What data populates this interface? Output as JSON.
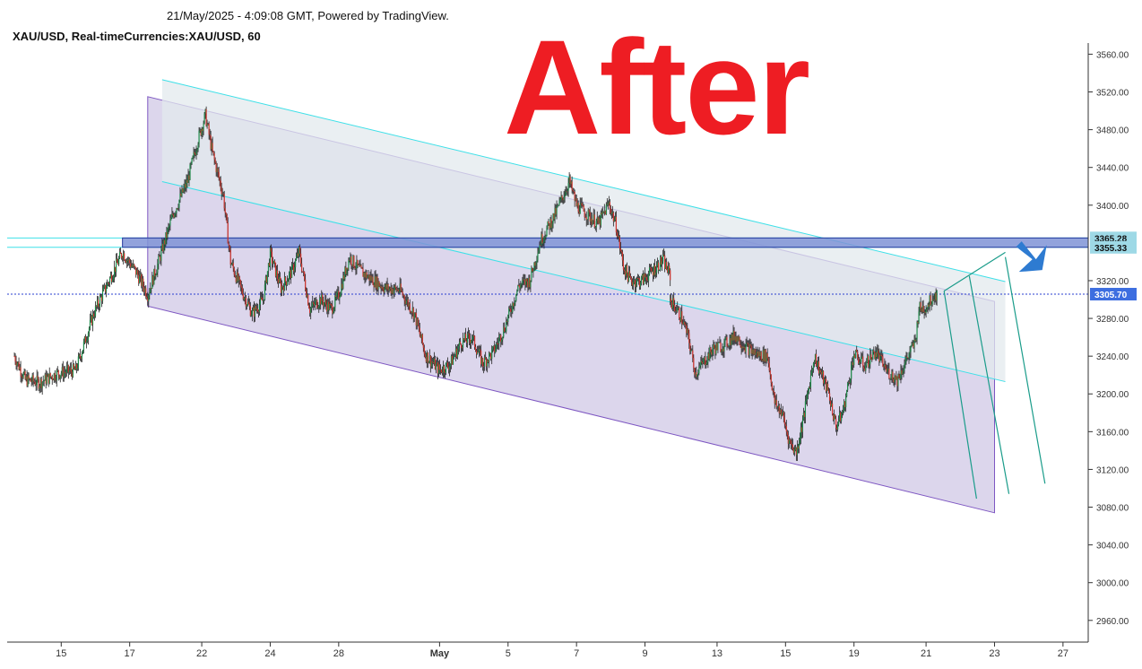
{
  "header": {
    "timestamp_line": "21/May/2025 - 4:09:08 GMT, Powered by TradingView.",
    "symbol_line": "XAU/USD, Real-timeCurrencies:XAU/USD, 60"
  },
  "overlay_text": "After",
  "colors": {
    "up_candle": "#1e8c4a",
    "down_candle": "#d0342c",
    "wick": "#222222",
    "channel_fill": "#d8d2ea",
    "channel_line": "#7e57c2",
    "upper_channel_fill": "#e3e9ee",
    "cyan_line": "#3ee0e8",
    "zone_fill": "#7f93d6",
    "zone_border": "#26399e",
    "projection_line": "#1a9c8a",
    "arrow": "#2e7bd1",
    "price_label_bg": "#3d6ee0",
    "zone_label_bg": "#9ed9e6",
    "overlay_text": "#ee1d23"
  },
  "chart_data": {
    "type": "candlestick",
    "title": "XAU/USD, Real-timeCurrencies:XAU/USD, 60",
    "x_labels": [
      {
        "label": "15",
        "bar": 13
      },
      {
        "label": "17",
        "bar": 32
      },
      {
        "label": "22",
        "bar": 52
      },
      {
        "label": "24",
        "bar": 71
      },
      {
        "label": "28",
        "bar": 90
      },
      {
        "label": "May",
        "bar": 118
      },
      {
        "label": "5",
        "bar": 137
      },
      {
        "label": "7",
        "bar": 156
      },
      {
        "label": "9",
        "bar": 175
      },
      {
        "label": "13",
        "bar": 195
      },
      {
        "label": "15",
        "bar": 214
      },
      {
        "label": "19",
        "bar": 233
      },
      {
        "label": "21",
        "bar": 253
      },
      {
        "label": "23",
        "bar": 272
      },
      {
        "label": "27",
        "bar": 291
      }
    ],
    "bar_range": [
      -2,
      298
    ],
    "y_ticks": [
      2960,
      3000,
      3040,
      3080,
      3120,
      3160,
      3200,
      3240,
      3280,
      3320,
      3400,
      3440,
      3480,
      3520,
      3560
    ],
    "ylim": [
      2937,
      3568
    ],
    "price_labels": [
      {
        "value": 3365.28,
        "label": "3365.28",
        "style": "zone"
      },
      {
        "value": 3355.33,
        "label": "3355.33",
        "style": "zone"
      },
      {
        "value": 3305.7,
        "label": "3305.70",
        "style": "current"
      }
    ],
    "anchors": [
      [
        0,
        3240
      ],
      [
        3,
        3215
      ],
      [
        7,
        3212
      ],
      [
        12,
        3222
      ],
      [
        17,
        3225
      ],
      [
        22,
        3285
      ],
      [
        26,
        3318
      ],
      [
        30,
        3350
      ],
      [
        34,
        3328
      ],
      [
        37,
        3305
      ],
      [
        40,
        3340
      ],
      [
        44,
        3390
      ],
      [
        48,
        3425
      ],
      [
        51,
        3470
      ],
      [
        53,
        3495
      ],
      [
        55,
        3455
      ],
      [
        58,
        3410
      ],
      [
        60,
        3340
      ],
      [
        63,
        3310
      ],
      [
        66,
        3285
      ],
      [
        69,
        3300
      ],
      [
        71,
        3348
      ],
      [
        74,
        3312
      ],
      [
        77,
        3330
      ],
      [
        79,
        3350
      ],
      [
        82,
        3290
      ],
      [
        85,
        3300
      ],
      [
        88,
        3290
      ],
      [
        90,
        3305
      ],
      [
        93,
        3345
      ],
      [
        96,
        3330
      ],
      [
        99,
        3322
      ],
      [
        103,
        3312
      ],
      [
        107,
        3310
      ],
      [
        111,
        3285
      ],
      [
        114,
        3242
      ],
      [
        118,
        3225
      ],
      [
        121,
        3232
      ],
      [
        124,
        3255
      ],
      [
        127,
        3260
      ],
      [
        130,
        3232
      ],
      [
        133,
        3245
      ],
      [
        136,
        3270
      ],
      [
        140,
        3315
      ],
      [
        143,
        3320
      ],
      [
        146,
        3362
      ],
      [
        150,
        3390
      ],
      [
        154,
        3425
      ],
      [
        156,
        3400
      ],
      [
        159,
        3390
      ],
      [
        162,
        3380
      ],
      [
        165,
        3402
      ],
      [
        167,
        3378
      ],
      [
        169,
        3335
      ],
      [
        171,
        3320
      ],
      [
        174,
        3320
      ],
      [
        177,
        3330
      ],
      [
        180,
        3342
      ],
      [
        182,
        3325
      ]
    ],
    "anchors_2": [
      [
        182,
        3300
      ],
      [
        185,
        3282
      ],
      [
        187,
        3260
      ],
      [
        189,
        3222
      ],
      [
        191,
        3232
      ],
      [
        194,
        3248
      ],
      [
        197,
        3252
      ],
      [
        200,
        3262
      ],
      [
        203,
        3250
      ],
      [
        206,
        3242
      ],
      [
        209,
        3240
      ],
      [
        211,
        3190
      ],
      [
        213,
        3180
      ],
      [
        215,
        3150
      ],
      [
        217,
        3138
      ],
      [
        219,
        3175
      ],
      [
        222,
        3240
      ],
      [
        224,
        3220
      ],
      [
        226,
        3200
      ],
      [
        228,
        3165
      ],
      [
        230,
        3182
      ],
      [
        233,
        3242
      ],
      [
        236,
        3230
      ],
      [
        239,
        3245
      ],
      [
        242,
        3225
      ],
      [
        245,
        3215
      ],
      [
        248,
        3240
      ],
      [
        250,
        3255
      ],
      [
        251,
        3290
      ],
      [
        253,
        3292
      ],
      [
        255,
        3304
      ],
      [
        256,
        3306
      ]
    ],
    "drawings": {
      "channel_parallelogram": [
        [
          37,
          3515
        ],
        [
          272,
          3298
        ],
        [
          272,
          3074
        ],
        [
          37,
          3293
        ]
      ],
      "upper_band": [
        [
          41,
          3533
        ],
        [
          275,
          3319
        ],
        [
          275,
          3213
        ],
        [
          41,
          3425
        ]
      ],
      "cyan_top_line": [
        [
          41,
          3533
        ],
        [
          275,
          3319
        ]
      ],
      "cyan_mid_line": [
        [
          41,
          3425
        ],
        [
          275,
          3213
        ]
      ],
      "horizontal_lines": [
        3365.28,
        3355.33
      ],
      "current_price_line": 3305.7,
      "resistance_zone": {
        "from_bar": 30,
        "to_bar": 298,
        "top": 3365.28,
        "bottom": 3355.33
      },
      "projection_lines": [
        [
          [
            258,
            3309
          ],
          [
            275,
            3350
          ]
        ],
        [
          [
            258,
            3309
          ],
          [
            267,
            3089
          ]
        ],
        [
          [
            265,
            3325
          ],
          [
            276,
            3094
          ]
        ],
        [
          [
            275,
            3345
          ],
          [
            286,
            3105
          ]
        ]
      ],
      "down_arrow": {
        "bar": 283,
        "value": 3335
      }
    }
  }
}
